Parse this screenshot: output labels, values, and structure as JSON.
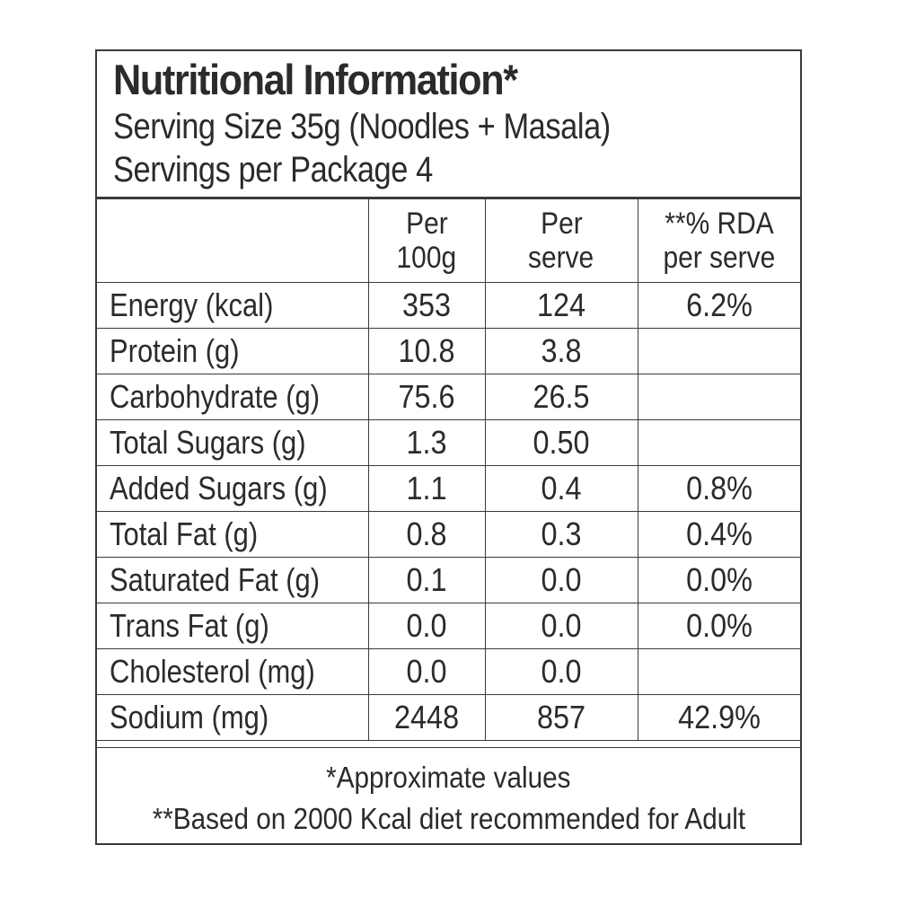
{
  "header": {
    "title": "Nutritional Information*",
    "serving_size": "Serving Size 35g (Noodles + Masala)",
    "servings_per_package": "Servings per Package 4"
  },
  "columns": {
    "per_100g": [
      "Per",
      "100g"
    ],
    "per_serve": [
      "Per",
      "serve"
    ],
    "rda": [
      "**% RDA",
      "per serve"
    ]
  },
  "rows": [
    {
      "name": "Energy (kcal)",
      "per_100g": "353",
      "per_serve": "124",
      "rda": "6.2%"
    },
    {
      "name": "Protein (g)",
      "per_100g": "10.8",
      "per_serve": "3.8",
      "rda": ""
    },
    {
      "name": "Carbohydrate (g)",
      "per_100g": "75.6",
      "per_serve": "26.5",
      "rda": ""
    },
    {
      "name": "Total Sugars (g)",
      "per_100g": "1.3",
      "per_serve": "0.50",
      "rda": ""
    },
    {
      "name": "Added Sugars (g)",
      "per_100g": "1.1",
      "per_serve": "0.4",
      "rda": "0.8%"
    },
    {
      "name": "Total Fat (g)",
      "per_100g": "0.8",
      "per_serve": "0.3",
      "rda": "0.4%"
    },
    {
      "name": "Saturated Fat (g)",
      "per_100g": "0.1",
      "per_serve": "0.0",
      "rda": "0.0%"
    },
    {
      "name": "Trans Fat (g)",
      "per_100g": "0.0",
      "per_serve": "0.0",
      "rda": "0.0%"
    },
    {
      "name": "Cholesterol (mg)",
      "per_100g": "0.0",
      "per_serve": "0.0",
      "rda": ""
    },
    {
      "name": "Sodium (mg)",
      "per_100g": "2448",
      "per_serve": "857",
      "rda": "42.9%"
    }
  ],
  "footer": {
    "note1": "*Approximate values",
    "note2": "**Based on 2000 Kcal diet recommended for Adult"
  },
  "colors": {
    "border": "#3a3a3a",
    "text": "#2b2b2b",
    "background": "#ffffff"
  }
}
